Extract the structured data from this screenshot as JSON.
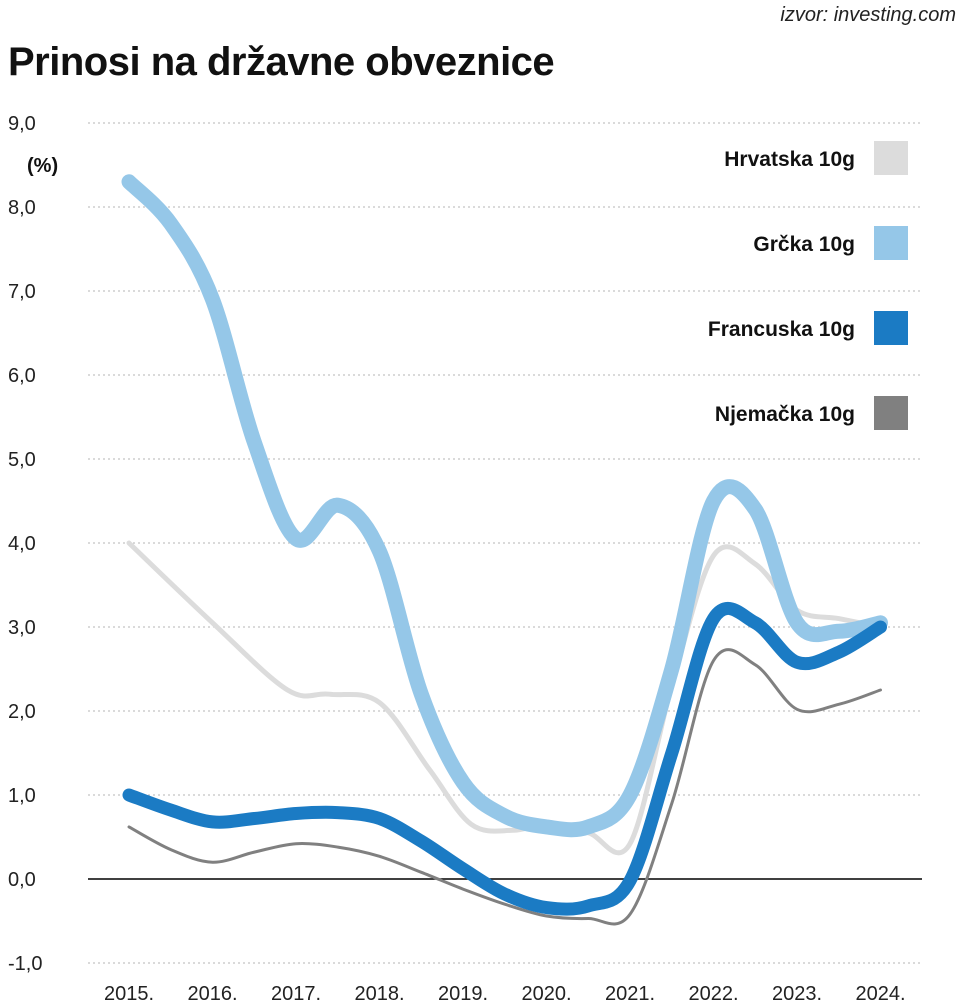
{
  "source": "izvor: investing.com",
  "chart_data": {
    "type": "line",
    "title": "Prinosi na državne obveznice",
    "ylabel": "(%)",
    "ylim": [
      -1.0,
      9.0
    ],
    "yticks": [
      "-1,0",
      "0,0",
      "1,0",
      "2,0",
      "3,0",
      "4,0",
      "5,0",
      "6,0",
      "7,0",
      "8,0",
      "9,0"
    ],
    "ytick_values": [
      -1,
      0,
      1,
      2,
      3,
      4,
      5,
      6,
      7,
      8,
      9
    ],
    "categories": [
      "2015.",
      "2016.",
      "2017.",
      "2018.",
      "2019.",
      "2020.",
      "2021.",
      "2022.",
      "2023.",
      "2024."
    ],
    "grid": true,
    "legend_position": "top-right",
    "series": [
      {
        "name": "Hrvatska 10g",
        "color": "#dcdcdc",
        "x": [
          0,
          1,
          1.9,
          2.4,
          3,
          3.6,
          4.1,
          4.6,
          5,
          5.5,
          6,
          6.5,
          7,
          7.5,
          8,
          8.5,
          9
        ],
        "values": [
          4.0,
          3.05,
          2.25,
          2.2,
          2.1,
          1.3,
          0.65,
          0.58,
          0.65,
          0.55,
          0.42,
          2.3,
          3.85,
          3.75,
          3.2,
          3.1,
          3.0
        ]
      },
      {
        "name": "Grčka 10g",
        "color": "#95c7e8",
        "x": [
          0,
          0.5,
          1,
          1.5,
          2,
          2.5,
          3,
          3.5,
          4,
          4.5,
          5,
          5.5,
          6,
          6.5,
          7,
          7.5,
          8,
          8.5,
          9
        ],
        "values": [
          8.3,
          7.8,
          6.9,
          5.2,
          4.05,
          4.45,
          3.9,
          2.2,
          1.15,
          0.75,
          0.62,
          0.62,
          1.0,
          2.5,
          4.5,
          4.4,
          3.05,
          2.95,
          3.05
        ]
      },
      {
        "name": "Francuska 10g",
        "color": "#1b7bc4",
        "x": [
          0,
          0.5,
          1,
          1.5,
          2,
          2.5,
          3,
          3.5,
          4,
          4.5,
          5,
          5.5,
          6,
          6.5,
          7,
          7.5,
          8,
          8.5,
          9
        ],
        "values": [
          1.0,
          0.82,
          0.68,
          0.72,
          0.78,
          0.79,
          0.72,
          0.45,
          0.12,
          -0.18,
          -0.34,
          -0.32,
          -0.02,
          1.5,
          3.1,
          3.05,
          2.58,
          2.7,
          3.0
        ]
      },
      {
        "name": "Njemačka 10g",
        "color": "#808080",
        "x": [
          0,
          0.5,
          1,
          1.5,
          2,
          2.5,
          3,
          3.5,
          4,
          4.5,
          5,
          5.5,
          6,
          6.5,
          7,
          7.5,
          8,
          8.5,
          9
        ],
        "values": [
          0.62,
          0.35,
          0.2,
          0.32,
          0.42,
          0.38,
          0.27,
          0.08,
          -0.12,
          -0.3,
          -0.44,
          -0.47,
          -0.42,
          0.9,
          2.6,
          2.55,
          2.02,
          2.08,
          2.25
        ]
      }
    ]
  }
}
